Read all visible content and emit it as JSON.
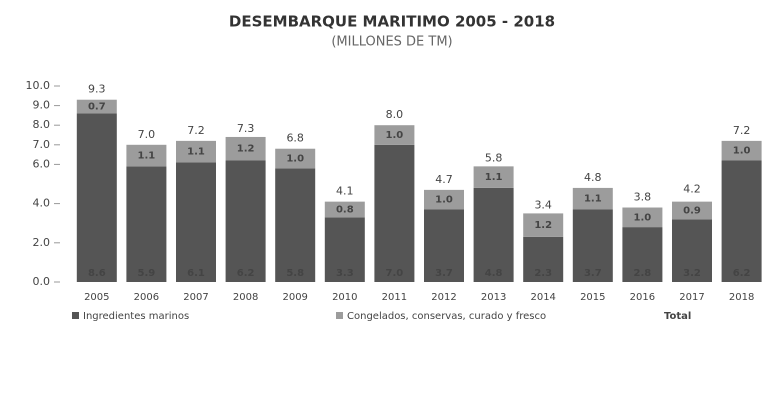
{
  "chart_data": {
    "type": "stacked_bar",
    "title": "DESEMBARQUE MARITIMO 2005 - 2018",
    "subtitle": "(MILLONES DE TM)",
    "categories": [
      "2005",
      "2006",
      "2007",
      "2008",
      "2009",
      "2010",
      "2011",
      "2012",
      "2013",
      "2014",
      "2015",
      "2016",
      "2017",
      "2018"
    ],
    "series": [
      {
        "name": "Ingredientes marinos",
        "color": "#555555",
        "values": [
          8.6,
          5.9,
          6.1,
          6.2,
          5.8,
          3.3,
          7.0,
          3.7,
          4.8,
          2.3,
          3.7,
          2.8,
          3.2,
          6.2
        ],
        "value_labels": [
          "8.6",
          "5.9",
          "6.1",
          "6.2",
          "5.8",
          "3.3",
          "7.0",
          "3.7",
          "4.8",
          "2.3",
          "3.7",
          "2.8",
          "3.2",
          "6.2"
        ]
      },
      {
        "name": "Congelados, conservas, curado y fresco",
        "color": "#9c9c9c",
        "values": [
          0.7,
          1.1,
          1.1,
          1.2,
          1.0,
          0.8,
          1.0,
          1.0,
          1.1,
          1.2,
          1.1,
          1.0,
          0.9,
          1.0
        ],
        "value_labels": [
          "0.7",
          "1.1",
          "1.1",
          "1.2",
          "1.0",
          "0.8",
          "1.0",
          "1.0",
          "1.1",
          "1.2",
          "1.1",
          "1.0",
          "0.9",
          "1.0"
        ]
      },
      {
        "name": "Total",
        "values": [
          9.3,
          7.0,
          7.2,
          7.3,
          6.8,
          4.1,
          8.0,
          4.7,
          5.8,
          3.4,
          4.8,
          3.8,
          4.2,
          7.2
        ],
        "value_labels": [
          "9.3",
          "7.0",
          "7.2",
          "7.3",
          "6.8",
          "4.1",
          "8.0",
          "4.7",
          "5.8",
          "3.4",
          "4.8",
          "3.8",
          "4.2",
          "7.2"
        ]
      }
    ],
    "ylim": [
      0,
      10
    ],
    "yticks": [
      {
        "value": 10,
        "label": "10.0"
      },
      {
        "value": 9,
        "label": "9.0"
      },
      {
        "value": 8,
        "label": "8.0"
      },
      {
        "value": 7,
        "label": "7.0"
      },
      {
        "value": 6,
        "label": "6.0"
      },
      {
        "value": 4,
        "label": "4.0"
      },
      {
        "value": 2,
        "label": "2.0"
      },
      {
        "value": 0,
        "label": "0.0"
      }
    ]
  }
}
